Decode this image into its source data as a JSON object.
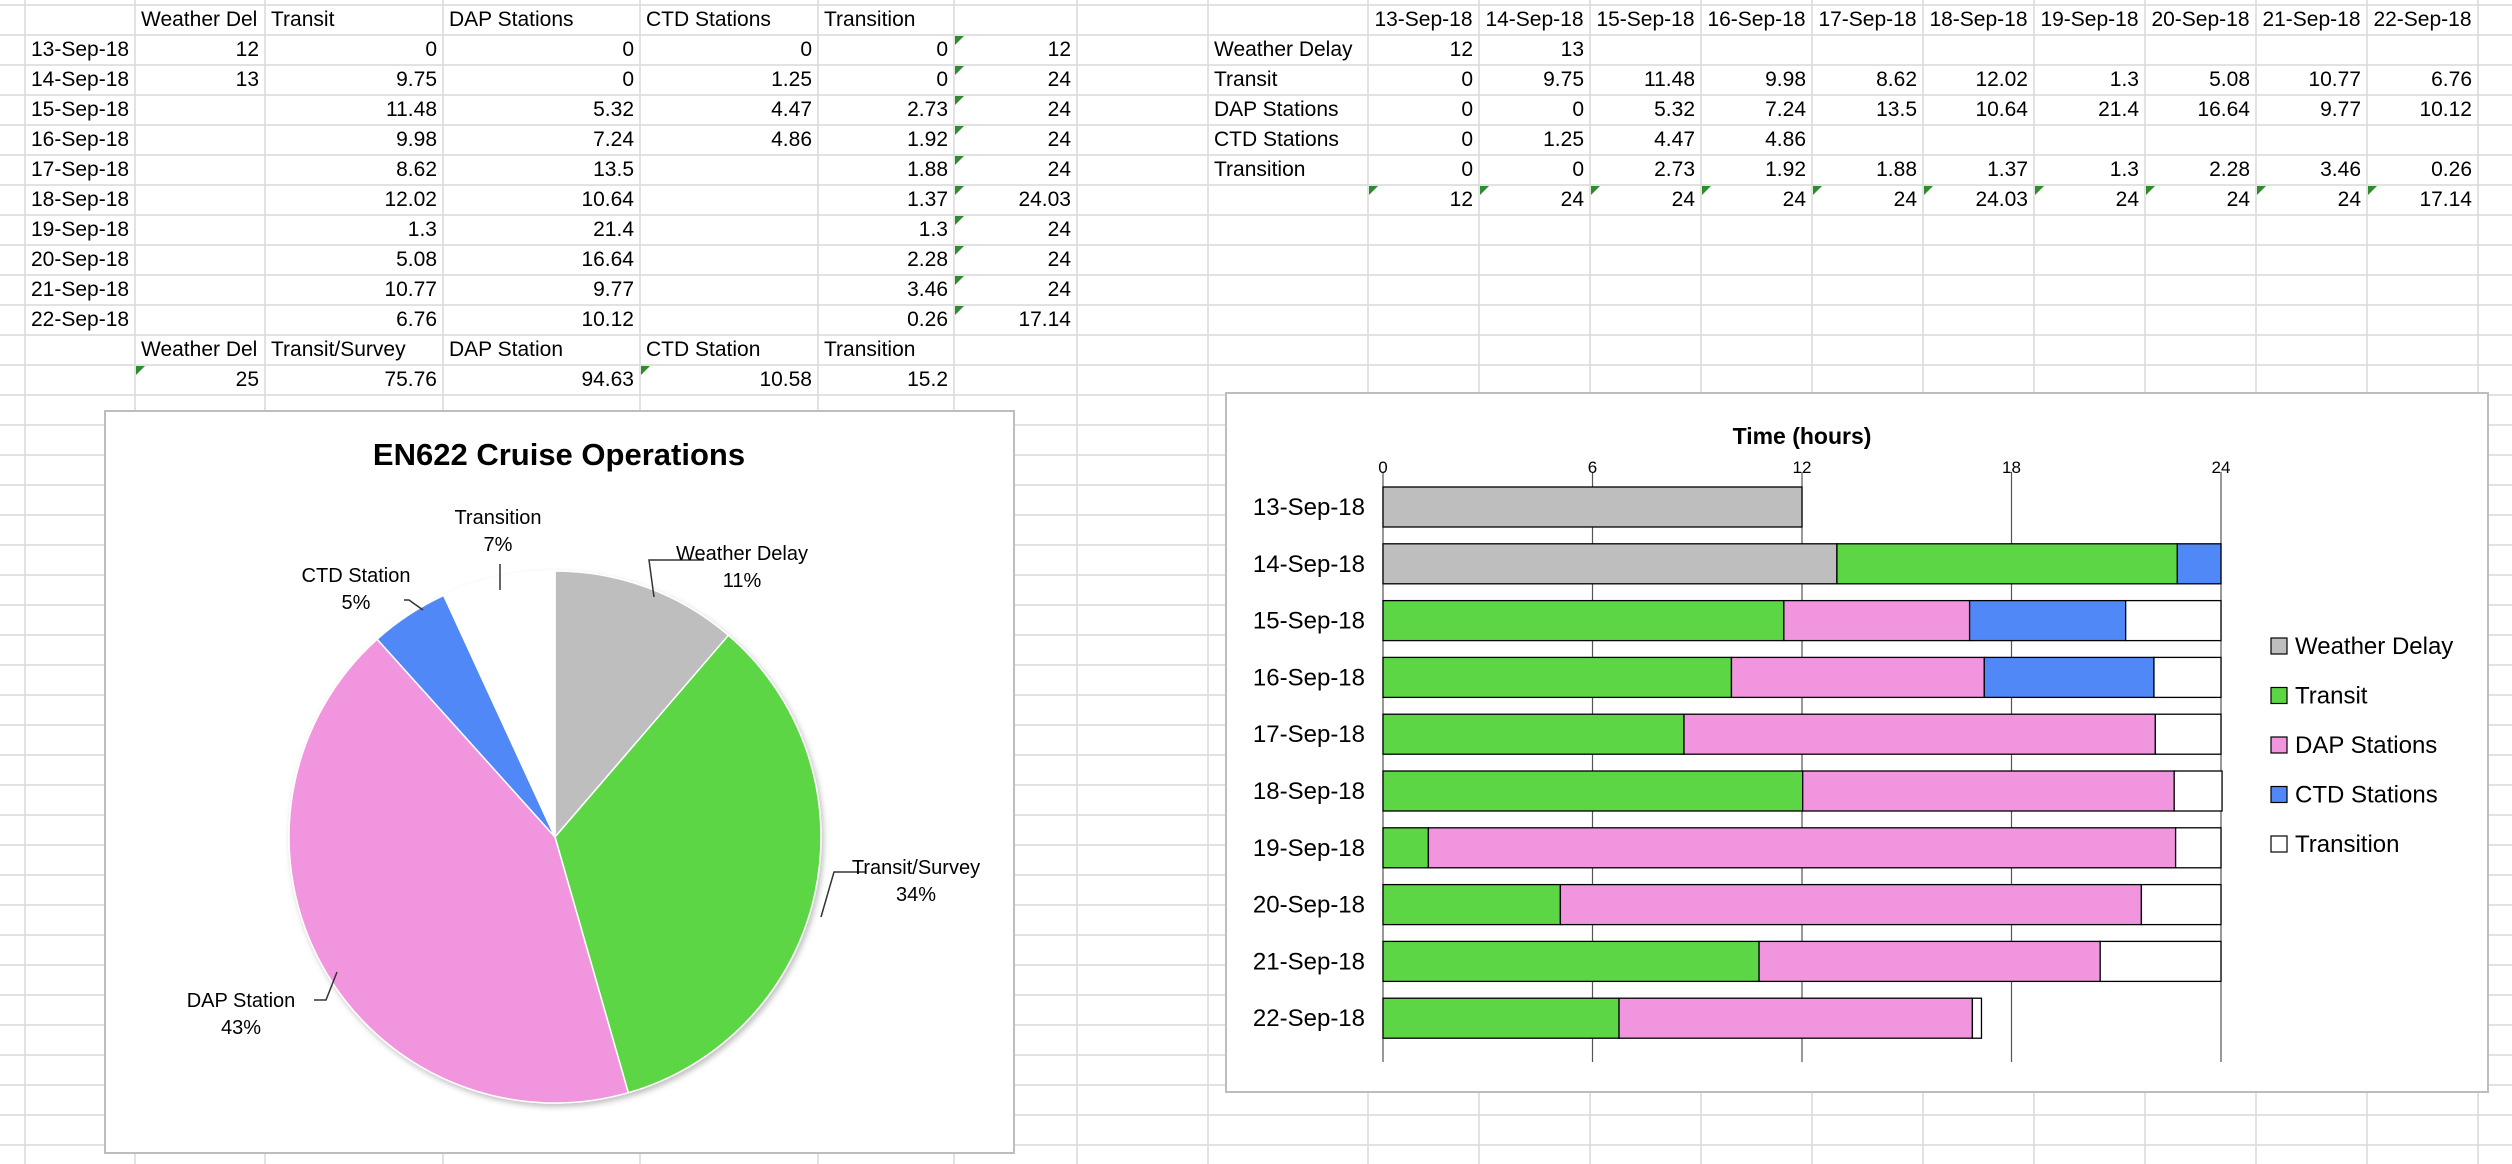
{
  "sheet": {
    "left_table": {
      "headers": [
        "Weather Del",
        "Transit",
        "DAP Stations",
        "CTD Stations",
        "Transition"
      ],
      "rows": [
        {
          "date": "13-Sep-18",
          "values": [
            "12",
            "0",
            "0",
            "0",
            "0"
          ],
          "total": "12"
        },
        {
          "date": "14-Sep-18",
          "values": [
            "13",
            "9.75",
            "0",
            "1.25",
            "0"
          ],
          "total": "24"
        },
        {
          "date": "15-Sep-18",
          "values": [
            "",
            "11.48",
            "5.32",
            "4.47",
            "2.73"
          ],
          "total": "24"
        },
        {
          "date": "16-Sep-18",
          "values": [
            "",
            "9.98",
            "7.24",
            "4.86",
            "1.92"
          ],
          "total": "24"
        },
        {
          "date": "17-Sep-18",
          "values": [
            "",
            "8.62",
            "13.5",
            "",
            "1.88"
          ],
          "total": "24"
        },
        {
          "date": "18-Sep-18",
          "values": [
            "",
            "12.02",
            "10.64",
            "",
            "1.37"
          ],
          "total": "24.03"
        },
        {
          "date": "19-Sep-18",
          "values": [
            "",
            "1.3",
            "21.4",
            "",
            "1.3"
          ],
          "total": "24"
        },
        {
          "date": "20-Sep-18",
          "values": [
            "",
            "5.08",
            "16.64",
            "",
            "2.28"
          ],
          "total": "24"
        },
        {
          "date": "21-Sep-18",
          "values": [
            "",
            "10.77",
            "9.77",
            "",
            "3.46"
          ],
          "total": "24"
        },
        {
          "date": "22-Sep-18",
          "values": [
            "",
            "6.76",
            "10.12",
            "",
            "0.26"
          ],
          "total": "17.14"
        }
      ],
      "summary_headers": [
        "Weather Del",
        "Transit/Survey",
        "DAP Station",
        "CTD Station",
        "Transition"
      ],
      "summary_values": [
        "25",
        "75.76",
        "94.63",
        "10.58",
        "15.2"
      ]
    },
    "right_table": {
      "dates": [
        "13-Sep-18",
        "14-Sep-18",
        "15-Sep-18",
        "16-Sep-18",
        "17-Sep-18",
        "18-Sep-18",
        "19-Sep-18",
        "20-Sep-18",
        "21-Sep-18",
        "22-Sep-18"
      ],
      "rows": [
        {
          "label": "Weather Delay",
          "values": [
            "12",
            "13",
            "",
            "",
            "",
            "",
            "",
            "",
            "",
            ""
          ]
        },
        {
          "label": "Transit",
          "values": [
            "0",
            "9.75",
            "11.48",
            "9.98",
            "8.62",
            "12.02",
            "1.3",
            "5.08",
            "10.77",
            "6.76"
          ]
        },
        {
          "label": "DAP Stations",
          "values": [
            "0",
            "0",
            "5.32",
            "7.24",
            "13.5",
            "10.64",
            "21.4",
            "16.64",
            "9.77",
            "10.12"
          ]
        },
        {
          "label": "CTD Stations",
          "values": [
            "0",
            "1.25",
            "4.47",
            "4.86",
            "",
            "",
            "",
            "",
            "",
            ""
          ]
        },
        {
          "label": "Transition",
          "values": [
            "0",
            "0",
            "2.73",
            "1.92",
            "1.88",
            "1.37",
            "1.3",
            "2.28",
            "3.46",
            "0.26"
          ]
        }
      ],
      "totals": [
        "12",
        "24",
        "24",
        "24",
        "24",
        "24.03",
        "24",
        "24",
        "24",
        "17.14"
      ]
    }
  },
  "colors": {
    "weather": "#bebebe",
    "transit": "#5dd645",
    "dap": "#f196de",
    "ctd": "#5188f7",
    "transition": "#ffffff",
    "gridline": "#d9d9d9",
    "flag": "#2e8b2e"
  },
  "chart_data": [
    {
      "type": "pie",
      "title": "EN622 Cruise Operations",
      "categories": [
        "Weather Delay",
        "Transit/Survey",
        "DAP Station",
        "CTD Station",
        "Transition"
      ],
      "values": [
        25,
        75.76,
        94.63,
        10.58,
        15.2
      ],
      "labels": [
        {
          "name": "Weather Delay",
          "pct": "11%"
        },
        {
          "name": "Transit/Survey",
          "pct": "34%"
        },
        {
          "name": "DAP Station",
          "pct": "43%"
        },
        {
          "name": "CTD Station",
          "pct": "5%"
        },
        {
          "name": "Transition",
          "pct": "7%"
        }
      ],
      "legend": "none"
    },
    {
      "type": "bar",
      "orientation": "horizontal",
      "stacked": true,
      "title": "Time (hours)",
      "categories": [
        "13-Sep-18",
        "14-Sep-18",
        "15-Sep-18",
        "16-Sep-18",
        "17-Sep-18",
        "18-Sep-18",
        "19-Sep-18",
        "20-Sep-18",
        "21-Sep-18",
        "22-Sep-18"
      ],
      "series": [
        {
          "name": "Weather Delay",
          "values": [
            12,
            13,
            0,
            0,
            0,
            0,
            0,
            0,
            0,
            0
          ]
        },
        {
          "name": "Transit",
          "values": [
            0,
            9.75,
            11.48,
            9.98,
            8.62,
            12.02,
            1.3,
            5.08,
            10.77,
            6.76
          ]
        },
        {
          "name": "DAP Stations",
          "values": [
            0,
            0,
            5.32,
            7.24,
            13.5,
            10.64,
            21.4,
            16.64,
            9.77,
            10.12
          ]
        },
        {
          "name": "CTD Stations",
          "values": [
            0,
            1.25,
            4.47,
            4.86,
            0,
            0,
            0,
            0,
            0,
            0
          ]
        },
        {
          "name": "Transition",
          "values": [
            0,
            0,
            2.73,
            1.92,
            1.88,
            1.37,
            1.3,
            2.28,
            3.46,
            0.26
          ]
        }
      ],
      "xlim": [
        0,
        24
      ],
      "xticks": [
        "0",
        "6",
        "12",
        "18",
        "24"
      ],
      "grid": true,
      "legend": "right"
    }
  ]
}
